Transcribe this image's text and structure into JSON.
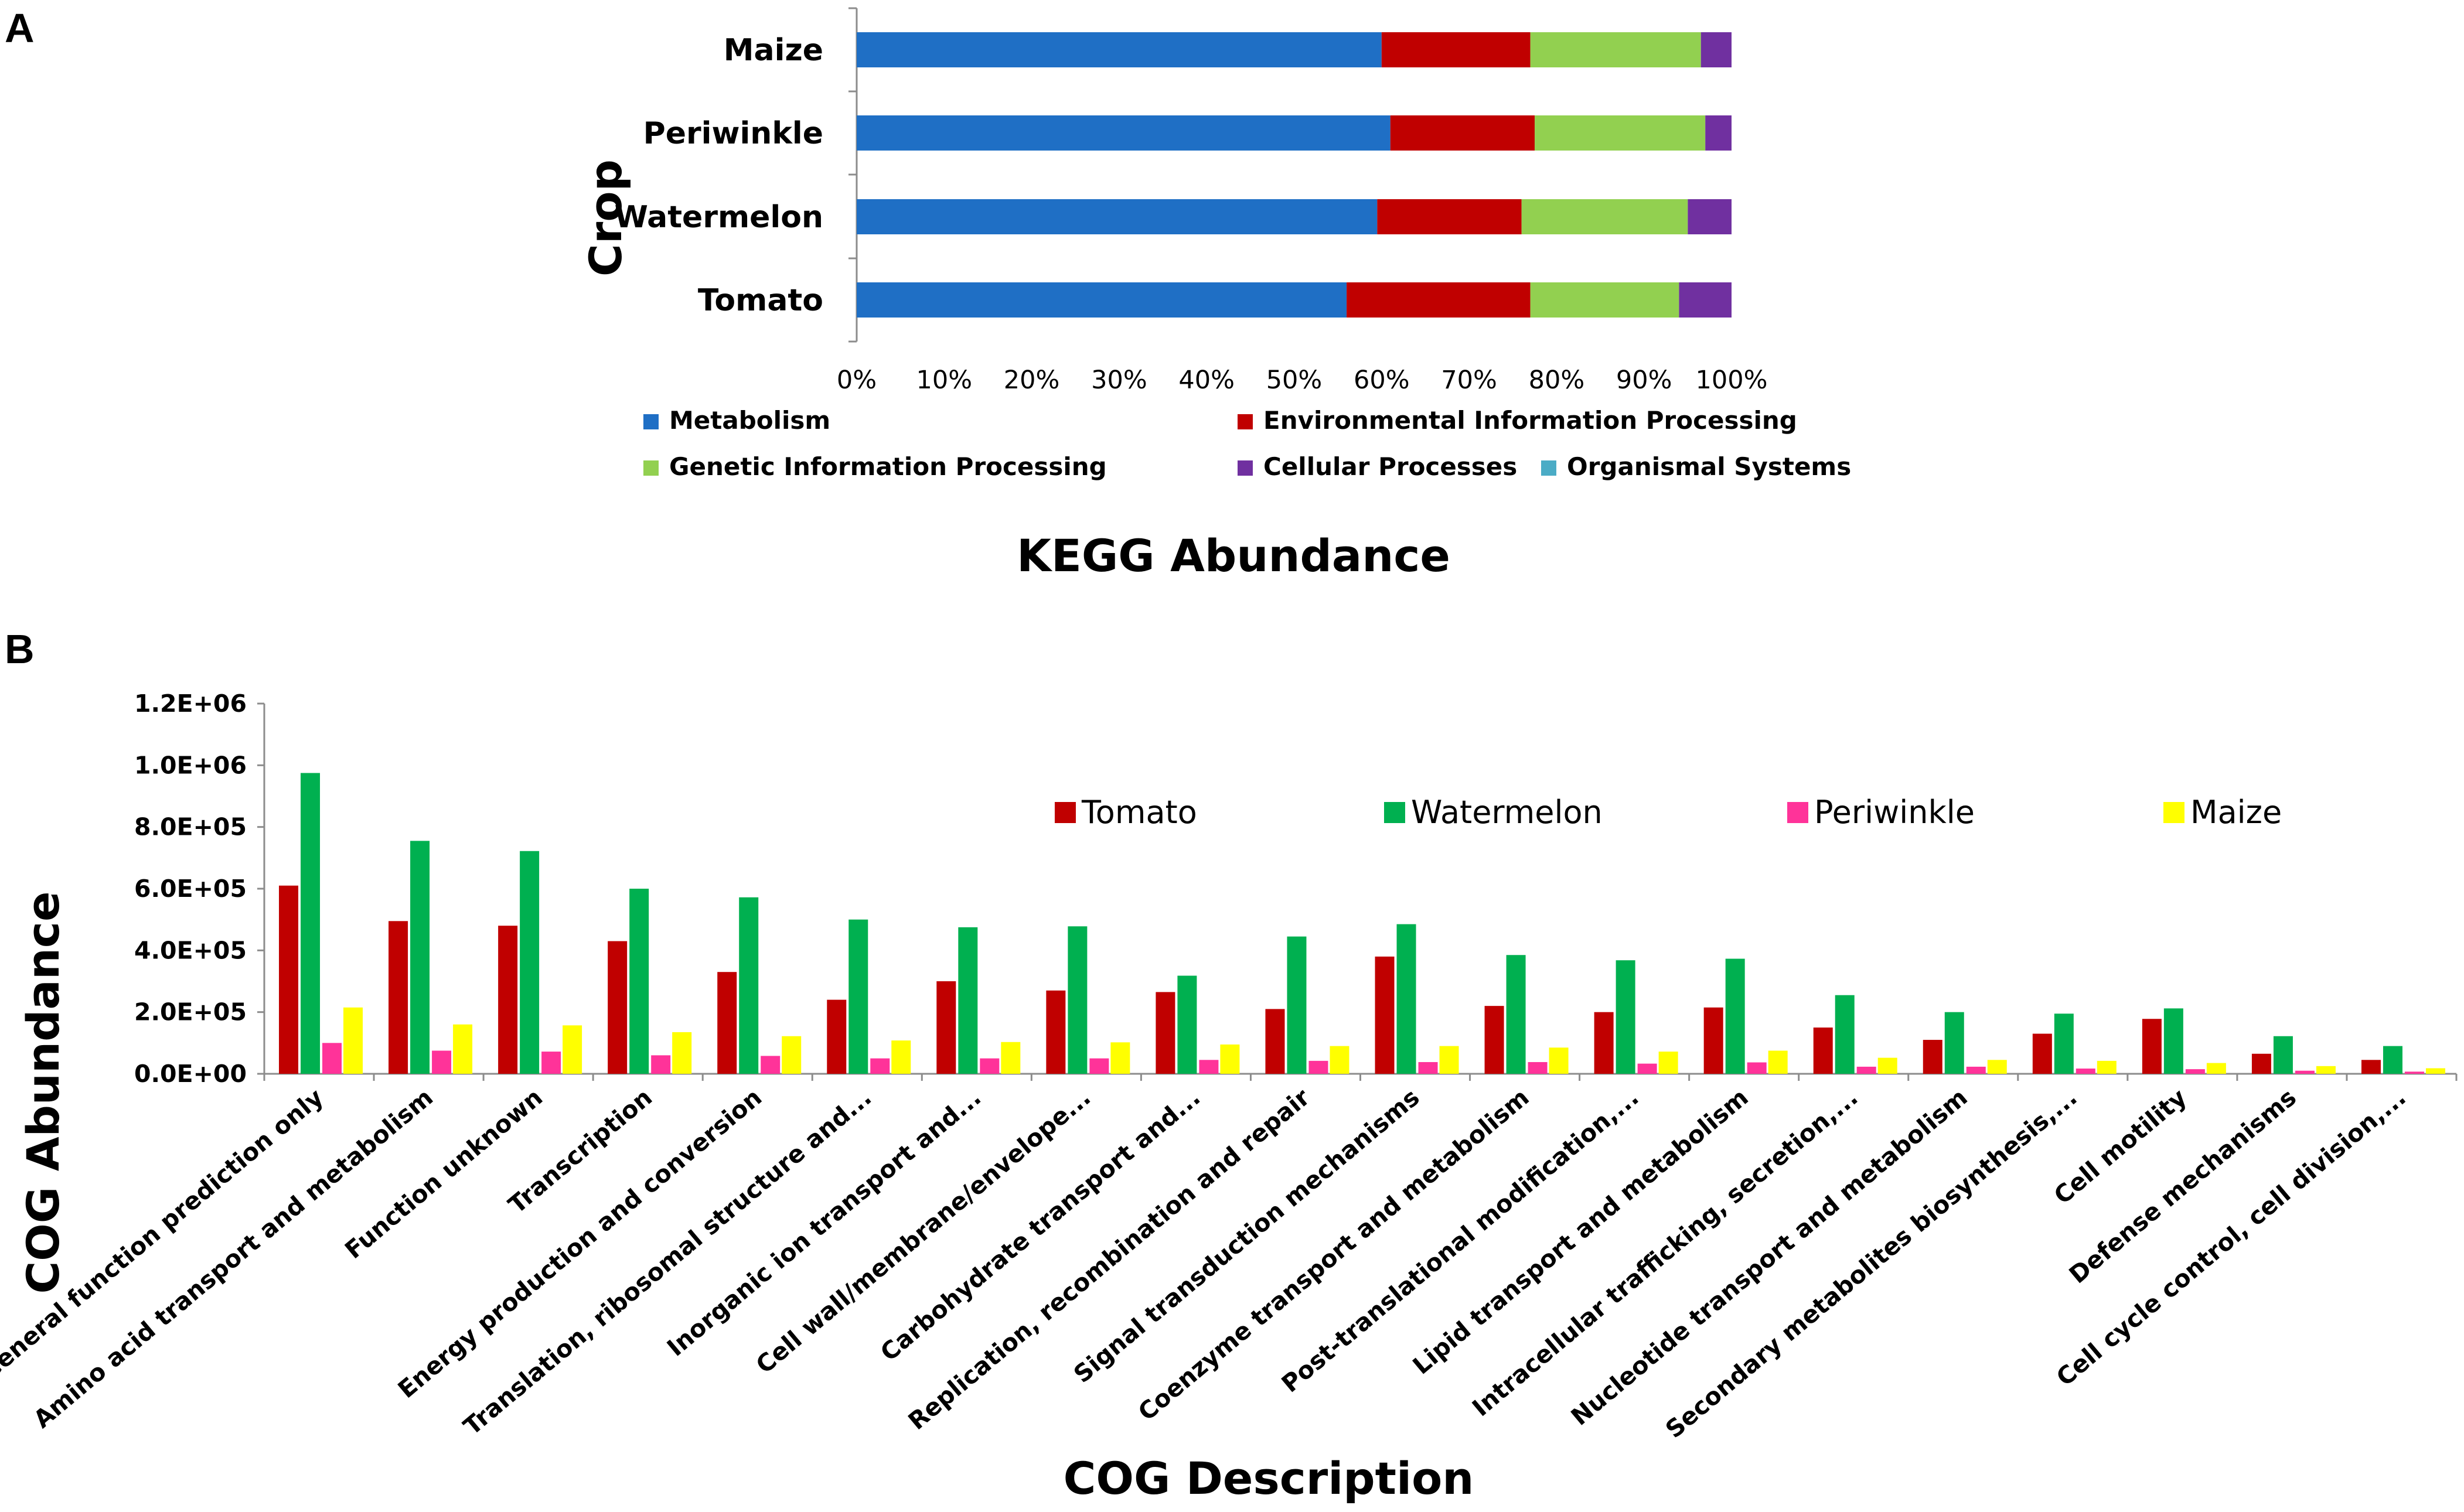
{
  "panel_a_label": "A",
  "panel_b_label": "B",
  "chart_data": [
    {
      "type": "bar",
      "orientation": "horizontal-stacked-percent",
      "title": "KEGG Abundance",
      "ylabel": "Crop",
      "xlabel": "",
      "categories": [
        "Maize",
        "Periwinkle",
        "Watermelon",
        "Tomato"
      ],
      "x_ticks": [
        "0%",
        "10%",
        "20%",
        "30%",
        "40%",
        "50%",
        "60%",
        "70%",
        "80%",
        "90%",
        "100%"
      ],
      "xlim": [
        0,
        100
      ],
      "legend_position": "bottom",
      "series": [
        {
          "name": "Metabolism",
          "color": "#1F6FC5",
          "values": [
            60,
            61,
            59.5,
            56
          ]
        },
        {
          "name": "Environmental Information Processing",
          "color": "#C00000",
          "values": [
            17,
            16.5,
            16.5,
            21
          ]
        },
        {
          "name": "Genetic Information Processing",
          "color": "#92D050",
          "values": [
            19.5,
            19.5,
            19,
            17
          ]
        },
        {
          "name": "Cellular Processes",
          "color": "#7030A0",
          "values": [
            3.5,
            3,
            5,
            6
          ]
        },
        {
          "name": "Organismal Systems",
          "color": "#4BACC6",
          "values": [
            0,
            0,
            0,
            0
          ]
        }
      ]
    },
    {
      "type": "bar",
      "orientation": "vertical-grouped",
      "title": "",
      "xlabel": "COG Description",
      "ylabel": "COG Abundance",
      "ylim": [
        0,
        1200000
      ],
      "y_ticks": [
        "0.0E+00",
        "2.0E+05",
        "4.0E+05",
        "6.0E+05",
        "8.0E+05",
        "1.0E+06",
        "1.2E+06"
      ],
      "legend_position": "top-right",
      "categories": [
        "General function prediction only",
        "Amino acid transport and metabolism",
        "Function unknown",
        "Transcription",
        "Energy production and conversion",
        "Translation, ribosomal structure and...",
        "Inorganic ion transport and...",
        "Cell wall/membrane/envelope...",
        "Carbohydrate transport and...",
        "Replication, recombination and repair",
        "Signal transduction mechanisms",
        "Coenzyme transport and metabolism",
        "Post-translational modification,...",
        "Lipid transport and metabolism",
        "Intracellular trafficking, secretion,...",
        "Nucleotide transport and metabolism",
        "Secondary metabolites biosynthesis,...",
        "Cell motility",
        "Defense mechanisms",
        "Cell cycle control, cell division,..."
      ],
      "series": [
        {
          "name": "Tomato",
          "color": "#C00000",
          "values": [
            610000,
            495000,
            480000,
            430000,
            330000,
            240000,
            300000,
            270000,
            265000,
            210000,
            380000,
            220000,
            200000,
            215000,
            150000,
            110000,
            130000,
            178000,
            65000,
            45000
          ]
        },
        {
          "name": "Watermelon",
          "color": "#00B050",
          "values": [
            975000,
            755000,
            722000,
            600000,
            572000,
            500000,
            475000,
            478000,
            318000,
            445000,
            485000,
            385000,
            368000,
            373000,
            255000,
            200000,
            195000,
            212000,
            122000,
            90000
          ]
        },
        {
          "name": "Periwinkle",
          "color": "#FF3399",
          "values": [
            100000,
            75000,
            72000,
            60000,
            58000,
            50000,
            50000,
            50000,
            45000,
            42000,
            38000,
            38000,
            33000,
            37000,
            23000,
            23000,
            17000,
            15000,
            10000,
            7000
          ]
        },
        {
          "name": "Maize",
          "color": "#FFFF00",
          "values": [
            215000,
            160000,
            157000,
            135000,
            122000,
            108000,
            103000,
            102000,
            95000,
            90000,
            90000,
            85000,
            72000,
            75000,
            52000,
            45000,
            42000,
            35000,
            25000,
            18000
          ]
        }
      ]
    }
  ]
}
